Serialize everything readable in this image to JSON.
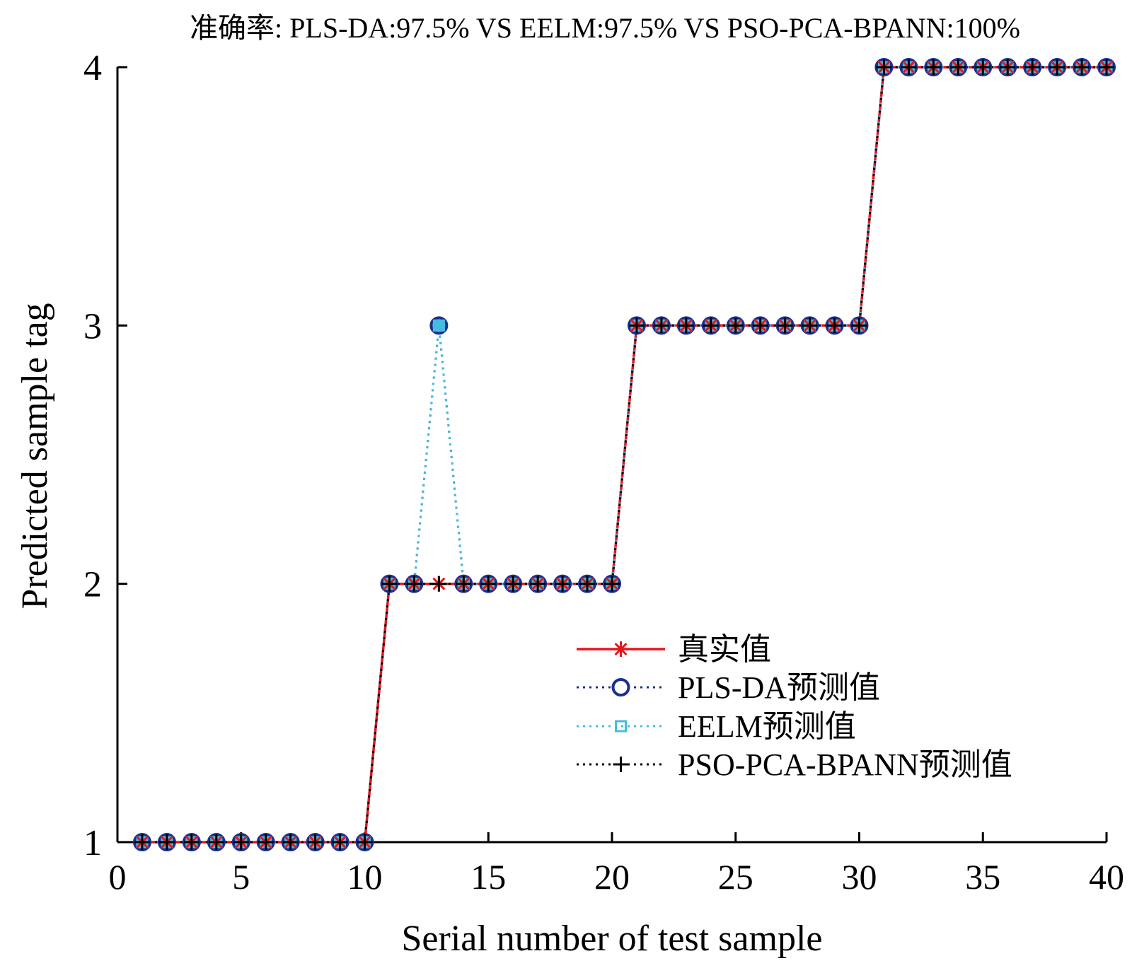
{
  "chart_data": {
    "type": "line",
    "title": "准确率: PLS-DA:97.5% VS EELM:97.5% VS PSO-PCA-BPANN:100%",
    "xlabel": "Serial number of test sample",
    "ylabel": "Predicted sample tag",
    "xlim": [
      0,
      40
    ],
    "ylim": [
      1,
      4
    ],
    "xticks": [
      0,
      5,
      10,
      15,
      20,
      25,
      30,
      35,
      40
    ],
    "yticks": [
      1,
      2,
      3,
      4
    ],
    "grid": false,
    "legend_position": "lower-right",
    "x": [
      1,
      2,
      3,
      4,
      5,
      6,
      7,
      8,
      9,
      10,
      11,
      12,
      13,
      14,
      15,
      16,
      17,
      18,
      19,
      20,
      21,
      22,
      23,
      24,
      25,
      26,
      27,
      28,
      29,
      30,
      31,
      32,
      33,
      34,
      35,
      36,
      37,
      38,
      39,
      40
    ],
    "series": [
      {
        "name": "真实值",
        "color": "#e8141c",
        "line_style": "solid",
        "marker": "asterisk",
        "values": [
          1,
          1,
          1,
          1,
          1,
          1,
          1,
          1,
          1,
          1,
          2,
          2,
          2,
          2,
          2,
          2,
          2,
          2,
          2,
          2,
          3,
          3,
          3,
          3,
          3,
          3,
          3,
          3,
          3,
          3,
          4,
          4,
          4,
          4,
          4,
          4,
          4,
          4,
          4,
          4
        ]
      },
      {
        "name": "PLS-DA预测值",
        "color": "#1a2f8f",
        "line_style": "dotted",
        "marker": "circle",
        "values": [
          1,
          1,
          1,
          1,
          1,
          1,
          1,
          1,
          1,
          1,
          2,
          2,
          3,
          2,
          2,
          2,
          2,
          2,
          2,
          2,
          3,
          3,
          3,
          3,
          3,
          3,
          3,
          3,
          3,
          3,
          4,
          4,
          4,
          4,
          4,
          4,
          4,
          4,
          4,
          4
        ]
      },
      {
        "name": "EELM预测值",
        "color": "#45bde0",
        "line_style": "dotted",
        "marker": "square",
        "values": [
          1,
          1,
          1,
          1,
          1,
          1,
          1,
          1,
          1,
          1,
          2,
          2,
          3,
          2,
          2,
          2,
          2,
          2,
          2,
          2,
          3,
          3,
          3,
          3,
          3,
          3,
          3,
          3,
          3,
          3,
          4,
          4,
          4,
          4,
          4,
          4,
          4,
          4,
          4,
          4
        ]
      },
      {
        "name": "PSO-PCA-BPANN预测值",
        "color": "#000000",
        "line_style": "dotted",
        "marker": "plus",
        "values": [
          1,
          1,
          1,
          1,
          1,
          1,
          1,
          1,
          1,
          1,
          2,
          2,
          2,
          2,
          2,
          2,
          2,
          2,
          2,
          2,
          3,
          3,
          3,
          3,
          3,
          3,
          3,
          3,
          3,
          3,
          4,
          4,
          4,
          4,
          4,
          4,
          4,
          4,
          4,
          4
        ]
      }
    ]
  }
}
